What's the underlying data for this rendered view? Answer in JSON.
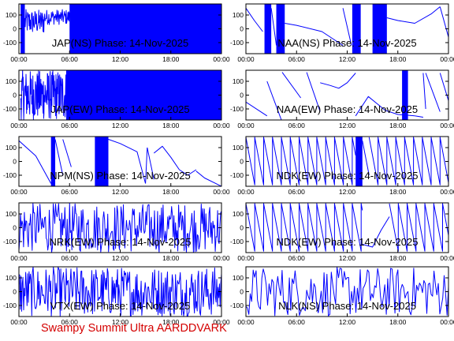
{
  "chart_data": [
    {
      "type": "line",
      "title": "JAP(NS) Phase: 14-Nov-2025",
      "x_ticks": [
        "00:00",
        "06:00",
        "12:00",
        "18:00",
        "00:00"
      ],
      "y_ticks": [
        100,
        0,
        -100
      ],
      "ylim": [
        -180,
        180
      ],
      "xlim_hours": [
        0,
        24
      ],
      "color": "#0000ff",
      "series": [
        {
          "segments": [
            {
              "kind": "band",
              "x0": 0.2,
              "x1": 0.7,
              "lo": -180,
              "hi": 180
            },
            {
              "kind": "noise",
              "x0": 0.7,
              "x1": 3.0,
              "lo": -40,
              "hi": 140,
              "n": 50
            },
            {
              "kind": "noise",
              "x0": 3.0,
              "x1": 6.0,
              "lo": 30,
              "hi": 140,
              "n": 60
            },
            {
              "kind": "band",
              "x0": 6.0,
              "x1": 24.0,
              "lo": -180,
              "hi": 180
            }
          ]
        }
      ]
    },
    {
      "type": "line",
      "title": "NAA(NS) Phase: 14-Nov-2025",
      "x_ticks": [
        "00:00",
        "06:00",
        "12:00",
        "18:00",
        "00:00"
      ],
      "y_ticks": [
        100,
        0,
        -100
      ],
      "ylim": [
        -180,
        180
      ],
      "xlim_hours": [
        0,
        24
      ],
      "color": "#0000ff",
      "series": [
        {
          "segments": [
            {
              "kind": "line",
              "x": [
                0,
                1.0,
                2.0
              ],
              "y": [
                150,
                60,
                -20
              ]
            },
            {
              "kind": "band",
              "x0": 2.2,
              "x1": 3.0,
              "lo": -180,
              "hi": 180
            },
            {
              "kind": "line",
              "x": [
                3.0,
                3.6
              ],
              "y": [
                150,
                -120
              ]
            },
            {
              "kind": "band",
              "x0": 3.6,
              "x1": 4.6,
              "lo": -180,
              "hi": 180
            },
            {
              "kind": "line",
              "x": [
                4.6,
                6.0,
                9.0,
                11.5
              ],
              "y": [
                40,
                25,
                -20,
                -120
              ]
            },
            {
              "kind": "line",
              "x": [
                11.5,
                12.5
              ],
              "y": [
                150,
                -120
              ]
            },
            {
              "kind": "band",
              "x0": 12.6,
              "x1": 13.6,
              "lo": -180,
              "hi": 180
            },
            {
              "kind": "band",
              "x0": 15.0,
              "x1": 16.7,
              "lo": -180,
              "hi": 180
            },
            {
              "kind": "line",
              "x": [
                16.7,
                18.0,
                20.0,
                22.0,
                23.0
              ],
              "y": [
                80,
                60,
                40,
                110,
                160
              ]
            },
            {
              "kind": "line",
              "x": [
                23.0,
                24.0
              ],
              "y": [
                160,
                -60
              ]
            }
          ]
        }
      ]
    },
    {
      "type": "line",
      "title": "JAP(EW) Phase: 14-Nov-2025",
      "x_ticks": [
        "00:00",
        "06:00",
        "12:00",
        "18:00",
        "00:00"
      ],
      "y_ticks": [
        100,
        0,
        -100
      ],
      "ylim": [
        -180,
        180
      ],
      "xlim_hours": [
        0,
        24
      ],
      "color": "#0000ff",
      "series": [
        {
          "segments": [
            {
              "kind": "noise",
              "x0": 0.2,
              "x1": 5.6,
              "lo": -180,
              "hi": 180,
              "n": 160
            },
            {
              "kind": "band",
              "x0": 5.6,
              "x1": 24.0,
              "lo": -180,
              "hi": 180
            }
          ]
        }
      ]
    },
    {
      "type": "line",
      "title": "NAA(EW) Phase: 14-Nov-2025",
      "x_ticks": [
        "00:00",
        "06:00",
        "12:00",
        "18:00",
        "00:00"
      ],
      "y_ticks": [
        100,
        0,
        -100
      ],
      "ylim": [
        -180,
        180
      ],
      "xlim_hours": [
        0,
        24
      ],
      "color": "#0000ff",
      "series": [
        {
          "segments": [
            {
              "kind": "line",
              "x": [
                0,
                2.5
              ],
              "y": [
                -50,
                -150
              ]
            },
            {
              "kind": "line",
              "x": [
                2.5,
                4.2
              ],
              "y": [
                100,
                -180
              ]
            },
            {
              "kind": "line",
              "x": [
                4.3,
                6.5
              ],
              "y": [
                165,
                -20
              ]
            },
            {
              "kind": "line",
              "x": [
                7.2,
                8.8
              ],
              "y": [
                165,
                -120
              ]
            },
            {
              "kind": "line",
              "x": [
                8.8,
                10.0,
                11.0,
                12.0,
                13.0
              ],
              "y": [
                90,
                70,
                50,
                90,
                160
              ]
            },
            {
              "kind": "line",
              "x": [
                13.0,
                14.5,
                15.5,
                16.5,
                18.0,
                20.0
              ],
              "y": [
                -150,
                -10,
                -60,
                -110,
                -140,
                -150
              ]
            },
            {
              "kind": "band",
              "x0": 18.5,
              "x1": 19.2,
              "lo": -180,
              "hi": 180
            },
            {
              "kind": "line",
              "x": [
                20.0,
                21.0
              ],
              "y": [
                -150,
                -160
              ]
            },
            {
              "kind": "line",
              "x": [
                21.0,
                21.3
              ],
              "y": [
                160,
                -100
              ]
            },
            {
              "kind": "line",
              "x": [
                21.3,
                23.0
              ],
              "y": [
                160,
                -120
              ]
            },
            {
              "kind": "line",
              "x": [
                23.0,
                24.0
              ],
              "y": [
                160,
                -40
              ]
            }
          ]
        }
      ]
    },
    {
      "type": "line",
      "title": "NPM(NS) Phase: 14-Nov-2025",
      "x_ticks": [
        "00:00",
        "06:00",
        "12:00",
        "18:00",
        "00:00"
      ],
      "y_ticks": [
        100,
        0,
        -100
      ],
      "ylim": [
        -180,
        180
      ],
      "xlim_hours": [
        0,
        24
      ],
      "color": "#0000ff",
      "series": [
        {
          "segments": [
            {
              "kind": "line",
              "x": [
                0,
                2.0,
                3.8
              ],
              "y": [
                150,
                40,
                -160
              ]
            },
            {
              "kind": "band",
              "x0": 3.8,
              "x1": 4.3,
              "lo": -180,
              "hi": 180
            },
            {
              "kind": "line",
              "x": [
                4.3,
                5.2
              ],
              "y": [
                160,
                -100
              ]
            },
            {
              "kind": "line",
              "x": [
                5.2,
                6.2
              ],
              "y": [
                160,
                -40
              ]
            },
            {
              "kind": "band",
              "x0": 9.0,
              "x1": 10.6,
              "lo": -180,
              "hi": 180
            },
            {
              "kind": "line",
              "x": [
                10.6,
                12.0,
                14.0,
                15.0
              ],
              "y": [
                160,
                130,
                70,
                -160
              ]
            },
            {
              "kind": "line",
              "x": [
                15.0,
                15.2
              ],
              "y": [
                -160,
                100
              ]
            },
            {
              "kind": "line",
              "x": [
                15.2,
                16.0
              ],
              "y": [
                100,
                -130
              ]
            },
            {
              "kind": "line",
              "x": [
                16.0,
                17.0,
                18.0,
                19.0
              ],
              "y": [
                60,
                110,
                30,
                -60
              ]
            },
            {
              "kind": "line",
              "x": [
                19.0,
                20.0,
                21.0
              ],
              "y": [
                -60,
                -100,
                -60
              ]
            },
            {
              "kind": "line",
              "x": [
                21.0,
                22.0,
                24.0
              ],
              "y": [
                -70,
                -120,
                -180
              ]
            }
          ]
        }
      ]
    },
    {
      "type": "line",
      "title": "NDK(EW) Phase: 14-Nov-2025",
      "x_ticks": [
        "00:00",
        "06:00",
        "12:00",
        "18:00",
        "00:00"
      ],
      "y_ticks": [
        100,
        0,
        -100
      ],
      "ylim": [
        -180,
        180
      ],
      "xlim_hours": [
        0,
        24
      ],
      "color": "#0000ff",
      "series": [
        {
          "segments": [
            {
              "kind": "saw",
              "x0": 0,
              "x1": 13.0,
              "period": 1.05,
              "lo": -170,
              "hi": 175
            },
            {
              "kind": "band",
              "x0": 13.0,
              "x1": 13.8,
              "lo": -180,
              "hi": 180
            },
            {
              "kind": "line",
              "x": [
                13.8,
                14.6
              ],
              "y": [
                150,
                -100
              ]
            },
            {
              "kind": "saw",
              "x0": 14.6,
              "x1": 24.0,
              "period": 1.05,
              "lo": -170,
              "hi": 175
            }
          ]
        }
      ]
    },
    {
      "type": "line",
      "title": "NRK(EW) Phase: 14-Nov-2025",
      "x_ticks": [
        "00:00",
        "06:00",
        "12:00",
        "18:00",
        "00:00"
      ],
      "y_ticks": [
        100,
        0,
        -100
      ],
      "ylim": [
        -180,
        180
      ],
      "xlim_hours": [
        0,
        24
      ],
      "color": "#0000ff",
      "series": [
        {
          "segments": [
            {
              "kind": "noise",
              "x0": 0,
              "x1": 24.0,
              "lo": -180,
              "hi": 180,
              "n": 260
            }
          ]
        }
      ]
    },
    {
      "type": "line",
      "title": "NDK(EW) Phase: 14-Nov-2025",
      "x_ticks": [
        "00:00",
        "06:00",
        "12:00",
        "18:00",
        "00:00"
      ],
      "y_ticks": [
        100,
        0,
        -100
      ],
      "ylim": [
        -180,
        180
      ],
      "xlim_hours": [
        0,
        24
      ],
      "color": "#0000ff",
      "series": [
        {
          "segments": [
            {
              "kind": "saw",
              "x0": 0,
              "x1": 13.8,
              "period": 1.05,
              "lo": -170,
              "hi": 175
            },
            {
              "kind": "line",
              "x": [
                13.8,
                15.0,
                16.0,
                17.0
              ],
              "y": [
                -120,
                -140,
                -20,
                80
              ]
            },
            {
              "kind": "saw",
              "x0": 17.0,
              "x1": 24.0,
              "period": 1.05,
              "lo": -170,
              "hi": 175
            }
          ]
        }
      ]
    },
    {
      "type": "line",
      "title": "VTX(EW) Phase: 14-Nov-2025",
      "x_ticks": [
        "00:00",
        "06:00",
        "12:00",
        "18:00",
        "00:00"
      ],
      "y_ticks": [
        100,
        0,
        -100
      ],
      "ylim": [
        -180,
        180
      ],
      "xlim_hours": [
        0,
        24
      ],
      "color": "#0000ff",
      "series": [
        {
          "segments": [
            {
              "kind": "noise",
              "x0": 0,
              "x1": 24.0,
              "lo": -180,
              "hi": 180,
              "n": 300
            }
          ]
        }
      ]
    },
    {
      "type": "line",
      "title": "NLK(NS) Phase: 14-Nov-2025",
      "x_ticks": [
        "00:00",
        "06:00",
        "12:00",
        "18:00",
        "00:00"
      ],
      "y_ticks": [
        100,
        0,
        -100
      ],
      "ylim": [
        -180,
        180
      ],
      "xlim_hours": [
        0,
        24
      ],
      "color": "#0000ff",
      "series": [
        {
          "segments": [
            {
              "kind": "noise",
              "x0": 0,
              "x1": 24.0,
              "lo": -180,
              "hi": 180,
              "n": 140
            }
          ]
        }
      ]
    }
  ],
  "footer": {
    "text": "Swampy Summit Ultra AARDDVARK",
    "color": "#d40000"
  }
}
